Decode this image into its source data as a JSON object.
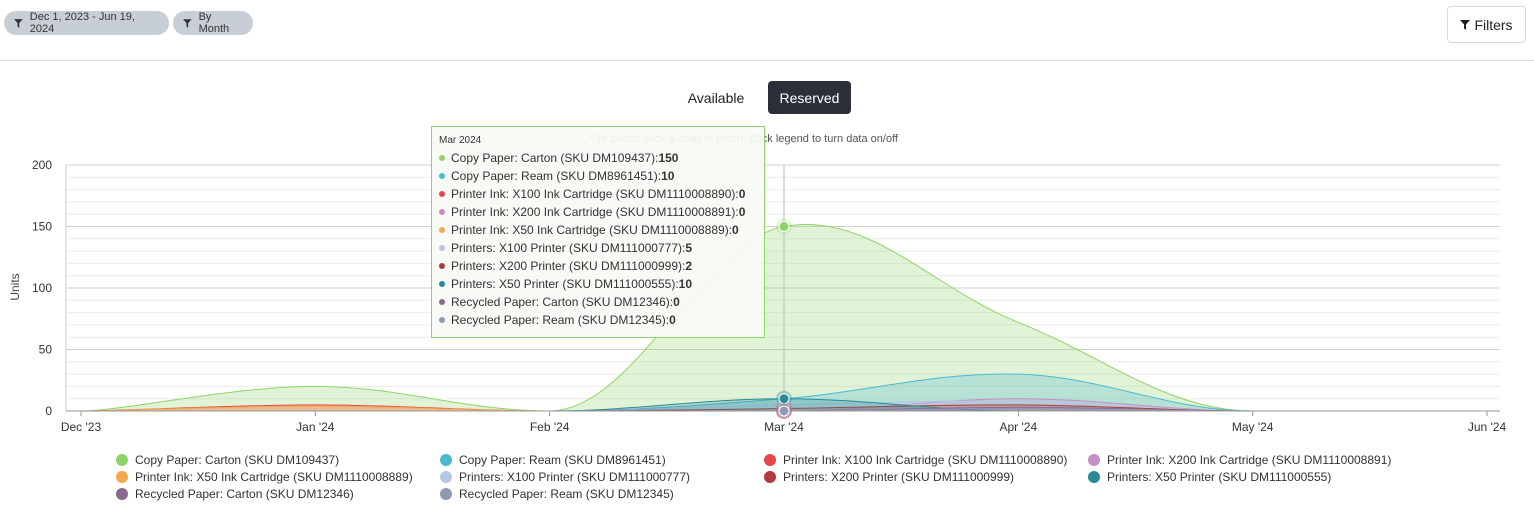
{
  "toolbar": {
    "date_chip": "Dec 1, 2023 - Jun 19, 2024",
    "period_chip": "By Month",
    "filters_label": "Filters"
  },
  "toggle": {
    "available": "Available",
    "reserved": "Reserved",
    "active": "reserved"
  },
  "hint": "* To zoom: click & drag or pinch. Click legend to turn data on/off",
  "tooltip": {
    "header": "Mar 2024",
    "rows": [
      {
        "label": "Copy Paper: Carton (SKU DM109437): ",
        "value": "150"
      },
      {
        "label": "Copy Paper: Ream (SKU DM8961451): ",
        "value": "10"
      },
      {
        "label": "Printer Ink: X100 Ink Cartridge (SKU DM1110008890): ",
        "value": "0"
      },
      {
        "label": "Printer Ink: X200 Ink Cartridge (SKU DM1110008891): ",
        "value": "0"
      },
      {
        "label": "Printer Ink: X50 Ink Cartridge (SKU DM1110008889): ",
        "value": "0"
      },
      {
        "label": "Printers: X100 Printer (SKU DM111000777): ",
        "value": "5"
      },
      {
        "label": "Printers: X200 Printer (SKU DM111000999): ",
        "value": "2"
      },
      {
        "label": "Printers: X50 Printer (SKU DM111000555): ",
        "value": "10"
      },
      {
        "label": "Recycled Paper: Carton (SKU DM12346): ",
        "value": "0"
      },
      {
        "label": "Recycled Paper: Ream (SKU DM12345): ",
        "value": "0"
      }
    ]
  },
  "chart_data": {
    "type": "area",
    "ylabel": "Units",
    "xlabel": "",
    "ylim": [
      0,
      200
    ],
    "yticks": [
      0,
      50,
      100,
      150,
      200
    ],
    "categories": [
      "Dec '23",
      "Jan '24",
      "Feb '24",
      "Mar '24",
      "Apr '24",
      "May '24",
      "Jun '24"
    ],
    "grid": true,
    "legend": "bottom",
    "series": [
      {
        "name": "Copy Paper: Carton (SKU DM109437)",
        "color": "#8fd46a",
        "values": [
          0,
          20,
          0,
          150,
          72,
          0,
          0
        ]
      },
      {
        "name": "Copy Paper: Ream (SKU DM8961451)",
        "color": "#4cb8d4",
        "values": [
          0,
          0,
          0,
          10,
          30,
          0,
          0
        ]
      },
      {
        "name": "Printer Ink: X100 Ink Cartridge (SKU DM1110008890)",
        "color": "#e8464b",
        "values": [
          0,
          5,
          0,
          0,
          0,
          0,
          0
        ]
      },
      {
        "name": "Printer Ink: X200 Ink Cartridge (SKU DM1110008891)",
        "color": "#c38fc7",
        "values": [
          0,
          0,
          0,
          0,
          10,
          0,
          0
        ]
      },
      {
        "name": "Printer Ink: X50 Ink Cartridge (SKU DM1110008889)",
        "color": "#f4a84b",
        "values": [
          0,
          4,
          0,
          0,
          0,
          0,
          0
        ]
      },
      {
        "name": "Printers: X100 Printer (SKU DM111000777)",
        "color": "#b5c4e8",
        "values": [
          0,
          0,
          0,
          5,
          8,
          0,
          0
        ]
      },
      {
        "name": "Printers: X200 Printer (SKU DM111000999)",
        "color": "#b23a3a",
        "values": [
          0,
          0,
          0,
          2,
          5,
          0,
          0
        ]
      },
      {
        "name": "Printers: X50 Printer (SKU DM111000555)",
        "color": "#2a8a96",
        "values": [
          0,
          0,
          0,
          10,
          0,
          0,
          0
        ]
      },
      {
        "name": "Recycled Paper: Carton (SKU DM12346)",
        "color": "#8a6a8e",
        "values": [
          0,
          0,
          0,
          0,
          3,
          0,
          0
        ]
      },
      {
        "name": "Recycled Paper: Ream (SKU DM12345)",
        "color": "#8e9ab3",
        "values": [
          0,
          0,
          0,
          0,
          2,
          0,
          0
        ]
      }
    ],
    "highlight_index": 3
  }
}
